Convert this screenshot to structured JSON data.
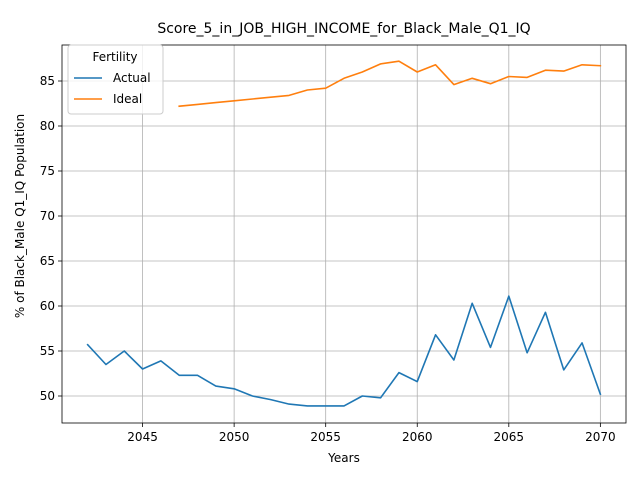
{
  "chart_data": {
    "type": "line",
    "title": "Score_5_in_JOB_HIGH_INCOME_for_Black_Male_Q1_IQ",
    "xlabel": "Years",
    "ylabel": "% of Black_Male Q1_IQ Population",
    "xlim": [
      2040.6,
      2071.4
    ],
    "ylim": [
      47.0,
      89.0
    ],
    "xticks": [
      2045,
      2050,
      2055,
      2060,
      2065,
      2070
    ],
    "yticks": [
      50,
      55,
      60,
      65,
      70,
      75,
      80,
      85
    ],
    "grid": true,
    "legend": {
      "title": "Fertility",
      "position": "top-left"
    },
    "series": [
      {
        "name": "Actual",
        "color": "#1f77b4",
        "x": [
          2042,
          2043,
          2044,
          2045,
          2046,
          2047,
          2048,
          2049,
          2050,
          2051,
          2052,
          2053,
          2054,
          2055,
          2056,
          2057,
          2058,
          2059,
          2060,
          2061,
          2062,
          2063,
          2064,
          2065,
          2066,
          2067,
          2068,
          2069,
          2070
        ],
        "y": [
          55.7,
          53.5,
          55.0,
          53.0,
          53.9,
          52.3,
          52.3,
          51.1,
          50.8,
          50.0,
          49.6,
          49.1,
          48.9,
          48.9,
          48.9,
          50.0,
          49.8,
          52.6,
          51.6,
          56.8,
          54.0,
          60.3,
          55.4,
          61.1,
          54.8,
          59.3,
          52.9,
          55.9,
          50.2
        ]
      },
      {
        "name": "Ideal",
        "color": "#ff7f0e",
        "x": [
          2047,
          2048,
          2049,
          2050,
          2051,
          2052,
          2053,
          2054,
          2055,
          2056,
          2057,
          2058,
          2059,
          2060,
          2061,
          2062,
          2063,
          2064,
          2065,
          2066,
          2067,
          2068,
          2069,
          2070
        ],
        "y": [
          82.2,
          82.4,
          82.6,
          82.8,
          83.0,
          83.2,
          83.4,
          84.0,
          84.2,
          85.3,
          86.0,
          86.9,
          87.2,
          86.0,
          86.8,
          84.6,
          85.3,
          84.7,
          85.5,
          85.4,
          86.2,
          86.1,
          86.8,
          86.7
        ]
      }
    ]
  }
}
